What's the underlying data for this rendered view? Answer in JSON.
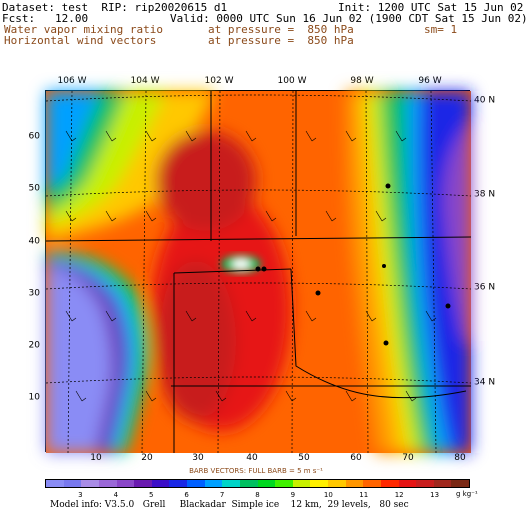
{
  "header": {
    "dataset": "Dataset: test  RIP: rip20020615 d1",
    "init": "Init: 1200 UTC Sat 15 Jun 02",
    "fcst": "Fcst:   12.00",
    "valid": "Valid: 0000 UTC Sun 16 Jun 02 (1900 CDT Sat 15 Jun 02)",
    "field1_name": "Water vapor mixing ratio",
    "field1_level": "at pressure =  850 hPa",
    "field1_sm": "sm= 1",
    "field2_name": "Horizontal wind vectors",
    "field2_level": "at pressure =  850 hPa"
  },
  "map": {
    "lon_labels": [
      "106 W",
      "104 W",
      "102 W",
      "100 W",
      "98 W",
      "96 W"
    ],
    "lat_labels": [
      "40 N",
      "38 N",
      "36 N",
      "34 N"
    ],
    "x_ticks": [
      "10",
      "20",
      "30",
      "40",
      "50",
      "60",
      "70",
      "80"
    ],
    "y_ticks": [
      "10",
      "20",
      "30",
      "40",
      "50",
      "60"
    ],
    "grid_x_range": [
      0,
      82
    ],
    "grid_y_range": [
      0,
      69
    ]
  },
  "barb_note": "BARB VECTORS:  FULL BARB = 5 m s⁻¹",
  "colorbar": {
    "colors": [
      "#8a8cf5",
      "#7878ee",
      "#a98ce6",
      "#9b68d8",
      "#8a46c8",
      "#6a1ab0",
      "#3c0ec8",
      "#1a28e6",
      "#0060ff",
      "#00a0ff",
      "#00d4c8",
      "#00c060",
      "#00d820",
      "#40f000",
      "#c8f000",
      "#fff000",
      "#ffc800",
      "#ff9600",
      "#ff6400",
      "#ff2800",
      "#e61414",
      "#c81e1e",
      "#a0281e",
      "#7a2814"
    ],
    "labels": [
      "3",
      "4",
      "5",
      "6",
      "7",
      "8",
      "9",
      "10",
      "11",
      "12",
      "13"
    ],
    "units": "g kg⁻¹"
  },
  "model_info": "Model info: V3.5.0   Grell     Blackadar  Simple ice    12 km,  29 levels,   80 sec"
}
